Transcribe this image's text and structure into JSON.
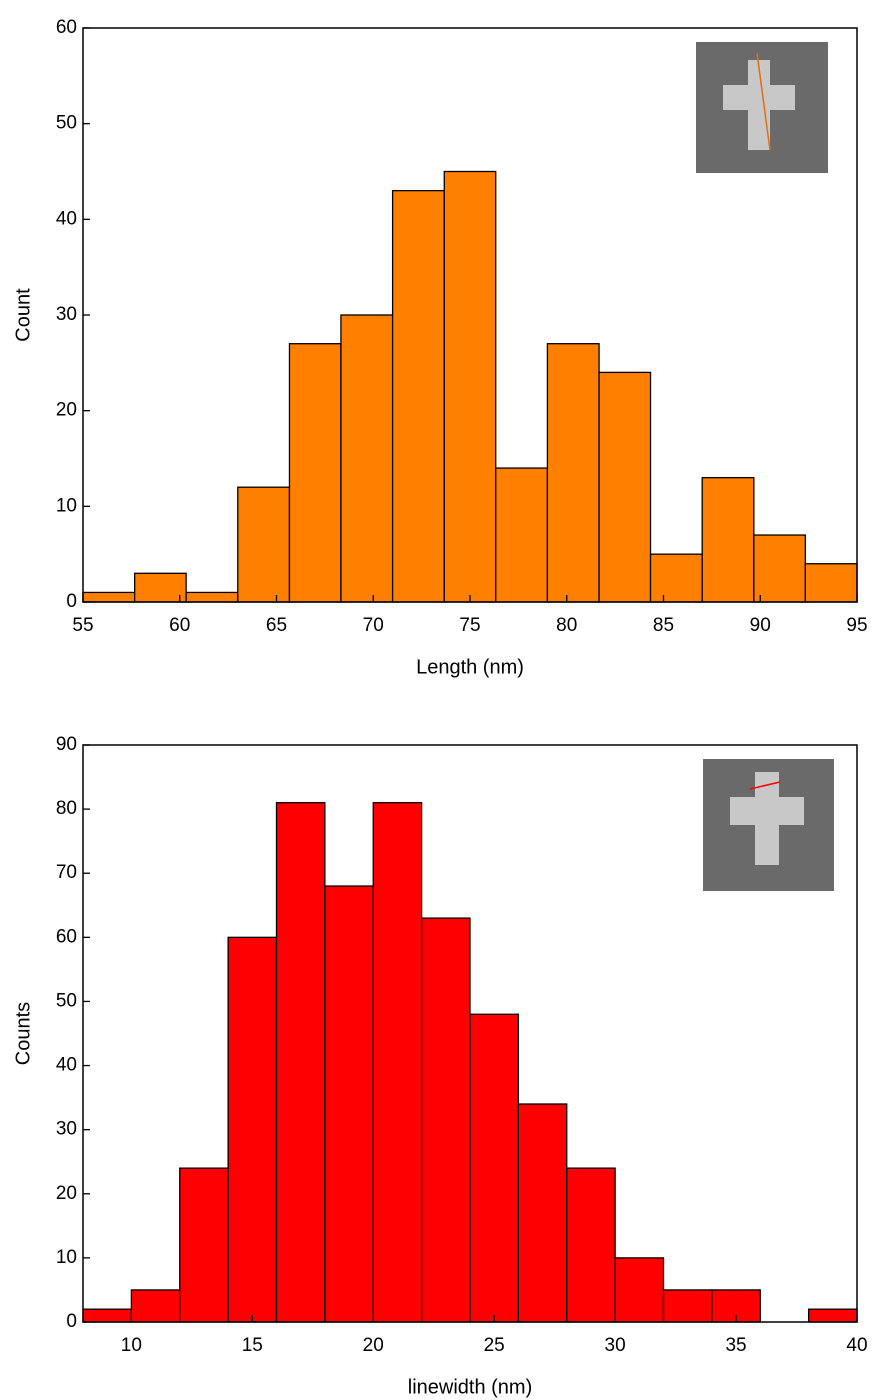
{
  "chart_data": [
    {
      "type": "histogram",
      "xlabel": "Length (nm)",
      "ylabel": "Count",
      "color": "#ff8000",
      "bins": [
        55,
        57.67,
        60.33,
        63,
        65.67,
        68.33,
        71,
        73.67,
        76.33,
        79,
        81.67,
        84.33,
        87,
        89.67,
        92.33,
        95
      ],
      "values": [
        1,
        3,
        1,
        12,
        27,
        30,
        43,
        45,
        14,
        27,
        24,
        5,
        13,
        7,
        4
      ],
      "xlim": [
        55,
        95
      ],
      "ylim": [
        0,
        60
      ],
      "xticks": [
        55,
        60,
        65,
        70,
        75,
        80,
        85,
        90,
        95
      ],
      "yticks": [
        0,
        10,
        20,
        30,
        40,
        50,
        60
      ]
    },
    {
      "type": "histogram",
      "xlabel": "linewidth (nm)",
      "ylabel": "Counts",
      "color": "#ff0000",
      "bins": [
        8,
        10,
        12,
        14,
        16,
        18,
        20,
        22,
        24,
        26,
        28,
        30,
        32,
        34,
        36,
        38,
        40
      ],
      "values": [
        2,
        5,
        24,
        60,
        81,
        68,
        81,
        63,
        48,
        34,
        24,
        10,
        5,
        5,
        0,
        2
      ],
      "xlim": [
        8,
        40
      ],
      "ylim": [
        0,
        90
      ],
      "xticks": [
        10,
        15,
        20,
        25,
        30,
        35,
        40
      ],
      "yticks": [
        0,
        10,
        20,
        30,
        40,
        50,
        60,
        70,
        80,
        90
      ]
    }
  ]
}
